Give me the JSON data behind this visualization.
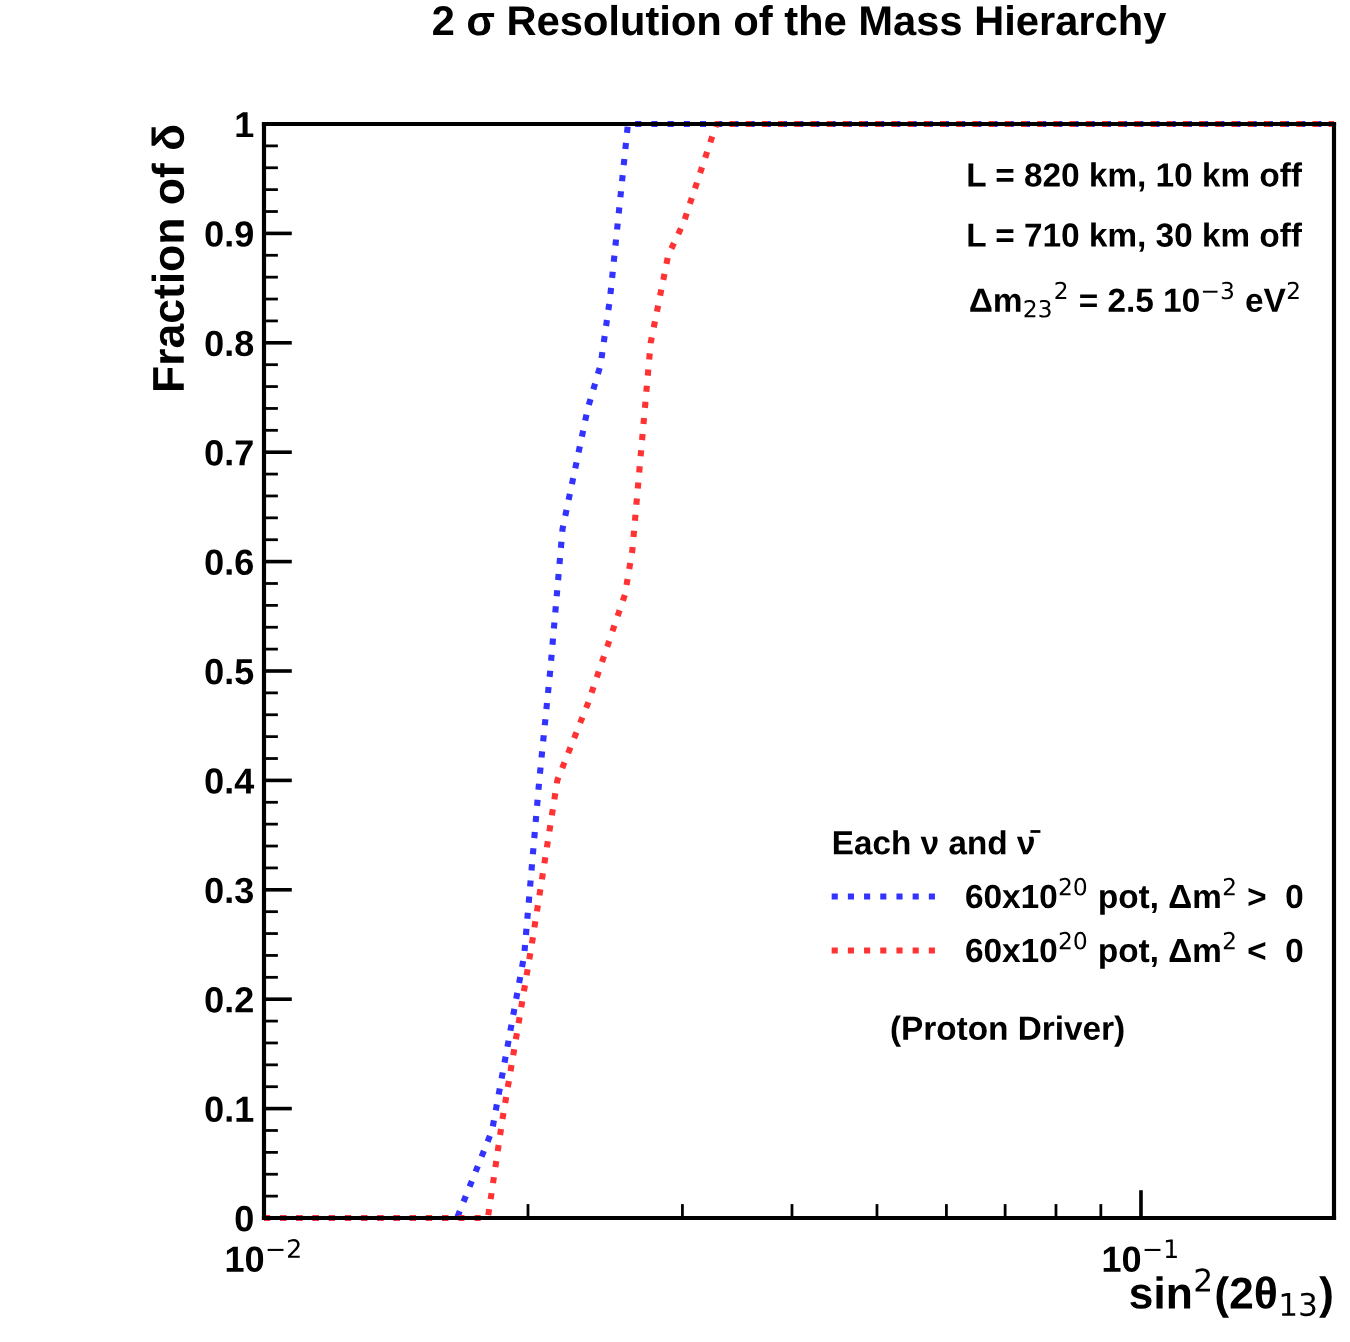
{
  "chart_data": {
    "type": "line",
    "title": "2 σ Resolution of the Mass Hierarchy",
    "xlabel": "sin$^{2}$(2θ$_{13}$)",
    "ylabel": "Fraction of δ",
    "log": "x",
    "xlim": [
      0.01,
      0.166
    ],
    "xticks": [
      {
        "value": 0.01,
        "label": "10$^{−2}$"
      },
      {
        "value": 0.1,
        "label": "10$^{−1}$"
      }
    ],
    "ylim": [
      0,
      1
    ],
    "yticks": [
      0,
      0.1,
      0.2,
      0.3,
      0.4,
      0.5,
      0.6,
      0.7,
      0.8,
      0.9,
      1
    ],
    "grid": false,
    "legend": "bottom right",
    "legend_title": "Each ν and ν̄",
    "line_style": "dotted",
    "marker": "none",
    "annotations": [
      "L = 820 km, 10 km off",
      "L = 710 km, 30 km off",
      "Δm$_{23}$$^{2}$ = 2.5 10$^{−3}$ eV$^{2}$",
      "(Proton Driver)"
    ],
    "series": [
      {
        "name": "60x10$^{20}$ pot, Δm$^{2}$ >  0",
        "color": "#3333ff",
        "x": [
          0.01,
          0.0166,
          0.0182,
          0.0198,
          0.0206,
          0.0212,
          0.0219,
          0.0234,
          0.0242,
          0.0248,
          0.026,
          0.166
        ],
        "values": [
          0,
          0,
          0.08,
          0.24,
          0.4,
          0.5,
          0.63,
          0.74,
          0.78,
          0.84,
          1,
          1
        ]
      },
      {
        "name": "60x10$^{20}$ pot, Δm$^{2}$ <  0",
        "color": "#ff3333",
        "x": [
          0.01,
          0.018,
          0.0187,
          0.0202,
          0.0216,
          0.0234,
          0.0258,
          0.0263,
          0.0276,
          0.0289,
          0.0301,
          0.0328,
          0.166
        ],
        "values": [
          0,
          0,
          0.09,
          0.25,
          0.4,
          0.47,
          0.57,
          0.61,
          0.8,
          0.88,
          0.91,
          1,
          1
        ]
      }
    ]
  }
}
